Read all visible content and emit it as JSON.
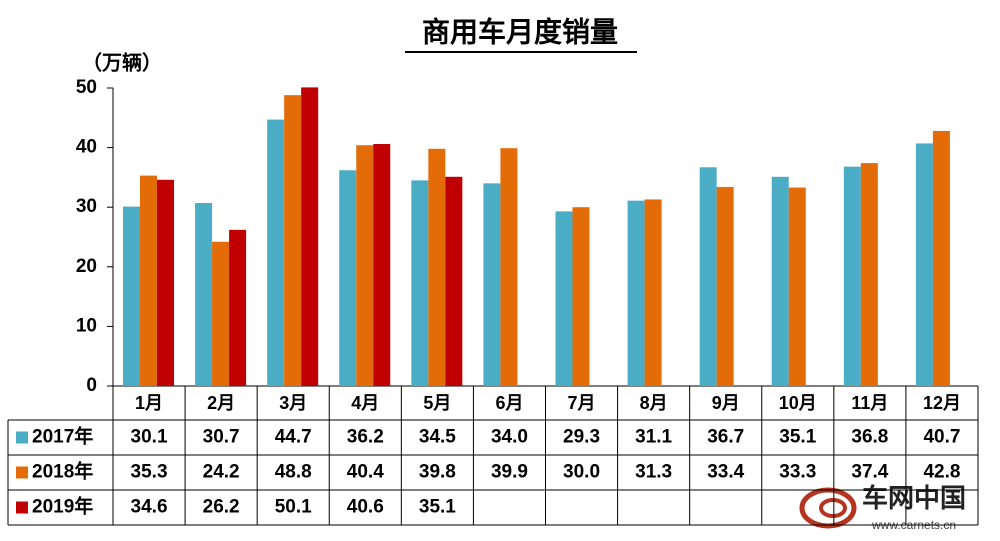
{
  "chart_data": {
    "type": "bar",
    "title": "商用车月度销量",
    "y_label": "（万辆）",
    "categories": [
      "1月",
      "2月",
      "3月",
      "4月",
      "5月",
      "6月",
      "7月",
      "8月",
      "9月",
      "10月",
      "11月",
      "12月"
    ],
    "series": [
      {
        "name": "2017年",
        "color": "#4bacc6",
        "values": [
          30.1,
          30.7,
          44.7,
          36.2,
          34.5,
          34.0,
          29.3,
          31.1,
          36.7,
          35.1,
          36.8,
          40.7
        ],
        "value_labels": [
          "30.1",
          "30.7",
          "44.7",
          "36.2",
          "34.5",
          "34.0",
          "29.3",
          "31.1",
          "36.7",
          "35.1",
          "36.8",
          "40.7"
        ]
      },
      {
        "name": "2018年",
        "color": "#e36c09",
        "values": [
          35.3,
          24.2,
          48.8,
          40.4,
          39.8,
          39.9,
          30.0,
          31.3,
          33.4,
          33.3,
          37.4,
          42.8
        ],
        "value_labels": [
          "35.3",
          "24.2",
          "48.8",
          "40.4",
          "39.8",
          "39.9",
          "30.0",
          "31.3",
          "33.4",
          "33.3",
          "37.4",
          "42.8"
        ]
      },
      {
        "name": "2019年",
        "color": "#c00000",
        "values": [
          34.6,
          26.2,
          50.1,
          40.6,
          35.1,
          null,
          null,
          null,
          null,
          null,
          null,
          null
        ],
        "value_labels": [
          "34.6",
          "26.2",
          "50.1",
          "40.6",
          "35.1",
          null,
          null,
          null,
          null,
          null,
          null,
          null
        ]
      }
    ],
    "ylim": [
      0,
      50
    ],
    "yticks": [
      0,
      10,
      20,
      30,
      40,
      50
    ],
    "grid": false,
    "watermark": {
      "brand": "车网中国",
      "url": "www.carnets.cn"
    }
  }
}
